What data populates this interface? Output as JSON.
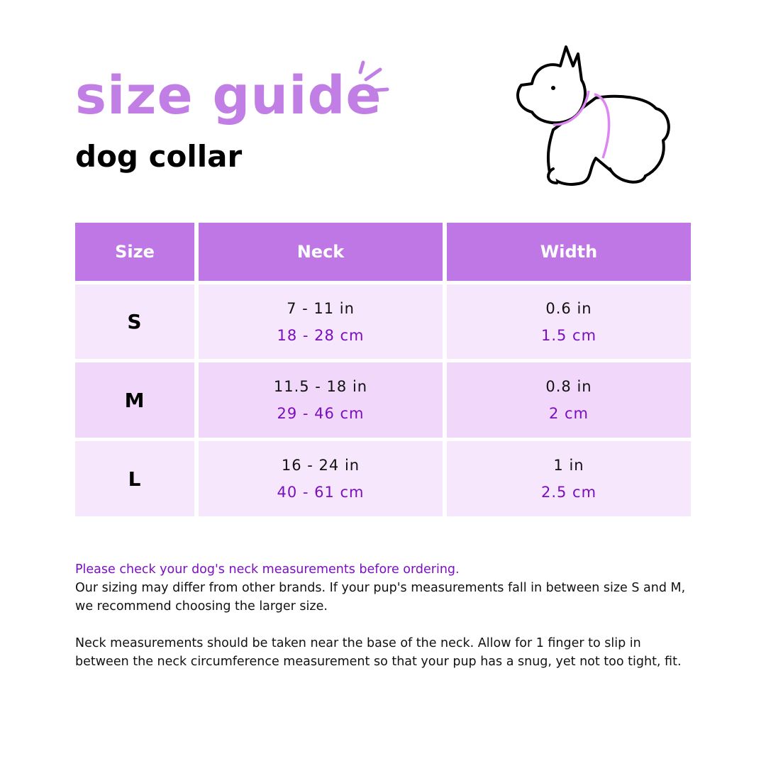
{
  "title": "size guide",
  "subtitle": "dog collar",
  "colors": {
    "accent": "#bf77e6",
    "title": "#c17fe6",
    "metric_text": "#7a0fbf",
    "row_light": "#f7e7fc",
    "row_mid": "#f1d8fb"
  },
  "illustration": "dog-with-collar-icon",
  "table": {
    "headers": [
      "Size",
      "Neck",
      "Width"
    ],
    "rows": [
      {
        "size": "S",
        "neck_in": "7 - 11 in",
        "neck_cm": "18 - 28 cm",
        "width_in": "0.6 in",
        "width_cm": "1.5 cm"
      },
      {
        "size": "M",
        "neck_in": "11.5 - 18 in",
        "neck_cm": "29 - 46 cm",
        "width_in": "0.8 in",
        "width_cm": "2 cm"
      },
      {
        "size": "L",
        "neck_in": "16 - 24 in",
        "neck_cm": "40 - 61 cm",
        "width_in": "1 in",
        "width_cm": "2.5 cm"
      }
    ]
  },
  "notes": {
    "highlight": "Please check your dog's neck measurements before ordering.",
    "p1": "Our sizing may differ from other brands. If your pup's measurements fall in between size S and M, we recommend choosing the larger size.",
    "p2": "Neck measurements should be taken near the base of the neck. Allow for 1 finger to slip in between the neck circumference measurement so that your pup has a snug, yet not too tight, fit."
  }
}
